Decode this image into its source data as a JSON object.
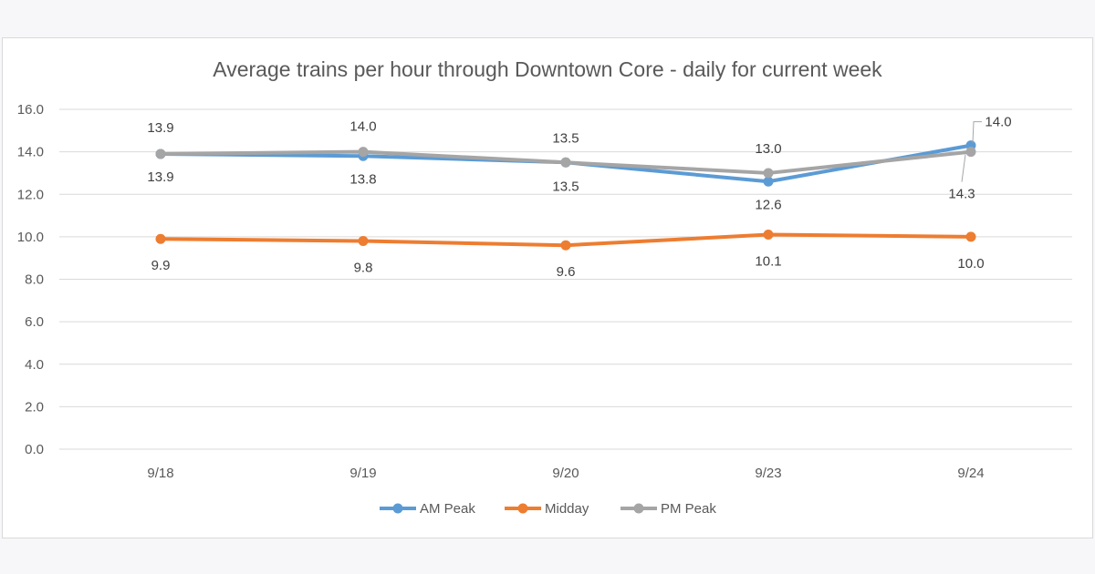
{
  "chart_data": {
    "type": "line",
    "title": "Average trains per hour through Downtown Core - daily for current week",
    "xlabel": "",
    "ylabel": "",
    "categories": [
      "9/18",
      "9/19",
      "9/20",
      "9/23",
      "9/24"
    ],
    "ylim": [
      0,
      16
    ],
    "yticks": [
      "0.0",
      "2.0",
      "4.0",
      "6.0",
      "8.0",
      "10.0",
      "12.0",
      "14.0",
      "16.0"
    ],
    "grid": true,
    "legend_position": "bottom",
    "series": [
      {
        "name": "AM Peak",
        "color": "#5b9bd5",
        "values": [
          13.9,
          13.8,
          13.5,
          12.6,
          14.3
        ],
        "labels": [
          "13.9",
          "13.8",
          "13.5",
          "12.6",
          "14.3"
        ]
      },
      {
        "name": "Midday",
        "color": "#ed7d31",
        "values": [
          9.9,
          9.8,
          9.6,
          10.1,
          10.0
        ],
        "labels": [
          "9.9",
          "9.8",
          "9.6",
          "10.1",
          "10.0"
        ]
      },
      {
        "name": "PM Peak",
        "color": "#a5a5a5",
        "values": [
          13.9,
          14.0,
          13.5,
          13.0,
          14.0
        ],
        "labels": [
          "13.9",
          "14.0",
          "13.5",
          "13.0",
          "14.0"
        ]
      }
    ]
  }
}
